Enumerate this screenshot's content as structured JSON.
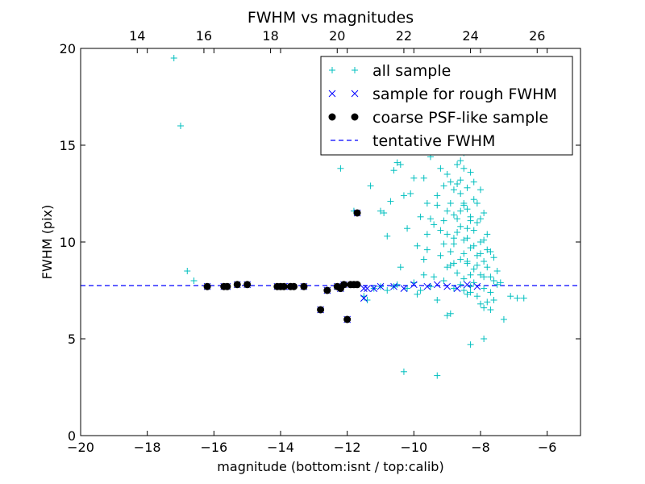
{
  "chart_data": {
    "type": "scatter",
    "title": "FWHM vs magnitudes",
    "xlabel": "magnitude (bottom:isnt / top:calib)",
    "ylabel": "FWHM (pix)",
    "xlim": [
      -20,
      -5
    ],
    "ylim": [
      0,
      20
    ],
    "x_ticks": [
      -20,
      -18,
      -16,
      -14,
      -12,
      -10,
      -8,
      -6
    ],
    "y_ticks": [
      0,
      5,
      10,
      15,
      20
    ],
    "x_tick_labels": [
      "−20",
      "−18",
      "−16",
      "−14",
      "−12",
      "−10",
      "−8",
      "−6"
    ],
    "y_tick_labels": [
      "0",
      "5",
      "10",
      "15",
      "20"
    ],
    "top_axis": {
      "offset": 32.3,
      "ticks": [
        14,
        16,
        18,
        20,
        22,
        24,
        26
      ],
      "tick_labels": [
        "14",
        "16",
        "18",
        "20",
        "22",
        "24",
        "26"
      ]
    },
    "grid": false,
    "legend_position": "top-right",
    "series": [
      {
        "name": "all sample",
        "marker": "plus",
        "color": "#00bfbf",
        "points": [
          [
            -17.2,
            19.5
          ],
          [
            -17.0,
            16.0
          ],
          [
            -16.8,
            8.5
          ],
          [
            -16.6,
            8.0
          ],
          [
            -12.2,
            13.8
          ],
          [
            -11.8,
            11.6
          ],
          [
            -11.5,
            7.2
          ],
          [
            -11.4,
            7.0
          ],
          [
            -11.3,
            12.9
          ],
          [
            -11.2,
            7.6
          ],
          [
            -11.0,
            11.6
          ],
          [
            -11.0,
            7.7
          ],
          [
            -10.9,
            11.5
          ],
          [
            -10.8,
            10.3
          ],
          [
            -10.8,
            7.5
          ],
          [
            -10.7,
            12.1
          ],
          [
            -10.6,
            13.7
          ],
          [
            -10.6,
            7.7
          ],
          [
            -10.5,
            7.8
          ],
          [
            -10.5,
            14.1
          ],
          [
            -10.4,
            14.0
          ],
          [
            -10.4,
            8.7
          ],
          [
            -10.3,
            12.4
          ],
          [
            -10.3,
            3.3
          ],
          [
            -10.2,
            10.7
          ],
          [
            -10.2,
            7.6
          ],
          [
            -10.1,
            12.5
          ],
          [
            -10.0,
            13.3
          ],
          [
            -10.0,
            7.9
          ],
          [
            -9.9,
            9.8
          ],
          [
            -9.9,
            7.3
          ],
          [
            -9.8,
            11.3
          ],
          [
            -9.8,
            7.5
          ],
          [
            -9.7,
            13.3
          ],
          [
            -9.7,
            8.3
          ],
          [
            -9.6,
            12.0
          ],
          [
            -9.6,
            9.6
          ],
          [
            -9.5,
            7.7
          ],
          [
            -9.5,
            14.4
          ],
          [
            -9.4,
            10.9
          ],
          [
            -9.4,
            8.2
          ],
          [
            -9.3,
            12.4
          ],
          [
            -9.3,
            7.0
          ],
          [
            -9.3,
            3.1
          ],
          [
            -9.2,
            9.3
          ],
          [
            -9.2,
            13.8
          ],
          [
            -9.1,
            11.1
          ],
          [
            -9.1,
            8.0
          ],
          [
            -9.0,
            6.2
          ],
          [
            -9.0,
            10.4
          ],
          [
            -9.0,
            13.5
          ],
          [
            -8.9,
            8.8
          ],
          [
            -8.9,
            12.0
          ],
          [
            -8.9,
            6.3
          ],
          [
            -8.8,
            9.9
          ],
          [
            -8.8,
            11.4
          ],
          [
            -8.8,
            7.6
          ],
          [
            -8.7,
            13.0
          ],
          [
            -8.7,
            8.4
          ],
          [
            -8.7,
            10.5
          ],
          [
            -8.6,
            9.1
          ],
          [
            -8.6,
            12.5
          ],
          [
            -8.6,
            7.8
          ],
          [
            -8.5,
            11.9
          ],
          [
            -8.5,
            8.1
          ],
          [
            -8.5,
            14.6
          ],
          [
            -8.4,
            10.2
          ],
          [
            -8.4,
            12.8
          ],
          [
            -8.4,
            8.9
          ],
          [
            -8.3,
            11.3
          ],
          [
            -8.3,
            9.7
          ],
          [
            -8.3,
            13.6
          ],
          [
            -8.3,
            7.4
          ],
          [
            -8.2,
            10.6
          ],
          [
            -8.2,
            8.6
          ],
          [
            -8.2,
            12.2
          ],
          [
            -8.1,
            9.3
          ],
          [
            -8.1,
            11.0
          ],
          [
            -8.1,
            7.2
          ],
          [
            -8.0,
            10.0
          ],
          [
            -8.0,
            8.3
          ],
          [
            -8.0,
            12.7
          ],
          [
            -7.9,
            9.0
          ],
          [
            -7.9,
            7.6
          ],
          [
            -7.9,
            11.5
          ],
          [
            -7.8,
            8.7
          ],
          [
            -7.8,
            10.4
          ],
          [
            -7.8,
            6.9
          ],
          [
            -7.7,
            9.5
          ],
          [
            -7.7,
            8.2
          ],
          [
            -7.7,
            6.5
          ],
          [
            -7.6,
            8.0
          ],
          [
            -7.6,
            9.2
          ],
          [
            -7.5,
            7.8
          ],
          [
            -7.5,
            8.5
          ],
          [
            -7.4,
            7.9
          ],
          [
            -8.6,
            13.2
          ],
          [
            -8.5,
            13.8
          ],
          [
            -8.4,
            11.7
          ],
          [
            -8.5,
            10.1
          ],
          [
            -8.4,
            9.0
          ],
          [
            -8.3,
            8.3
          ],
          [
            -8.2,
            9.8
          ],
          [
            -8.6,
            10.8
          ],
          [
            -8.7,
            11.2
          ],
          [
            -8.8,
            8.9
          ],
          [
            -8.9,
            9.5
          ],
          [
            -9.0,
            8.7
          ],
          [
            -9.1,
            9.9
          ],
          [
            -9.2,
            10.6
          ],
          [
            -8.5,
            7.5
          ],
          [
            -8.4,
            7.3
          ],
          [
            -8.3,
            7.7
          ],
          [
            -8.2,
            7.9
          ],
          [
            -8.1,
            8.8
          ],
          [
            -8.0,
            9.4
          ],
          [
            -7.9,
            10.1
          ],
          [
            -7.8,
            9.6
          ],
          [
            -7.7,
            7.4
          ],
          [
            -7.6,
            7.0
          ],
          [
            -8.0,
            6.8
          ],
          [
            -7.9,
            6.6
          ],
          [
            -8.3,
            4.7
          ],
          [
            -7.9,
            5.0
          ],
          [
            -7.3,
            6.0
          ],
          [
            -7.1,
            7.2
          ],
          [
            -6.9,
            7.1
          ],
          [
            -6.7,
            7.1
          ],
          [
            -8.5,
            12.0
          ],
          [
            -8.6,
            11.6
          ],
          [
            -9.3,
            11.9
          ],
          [
            -9.5,
            11.2
          ],
          [
            -9.6,
            10.4
          ],
          [
            -9.7,
            9.1
          ],
          [
            -8.8,
            12.7
          ],
          [
            -8.9,
            13.1
          ],
          [
            -9.1,
            12.9
          ],
          [
            -8.7,
            14.0
          ],
          [
            -8.6,
            14.2
          ],
          [
            -8.8,
            10.2
          ],
          [
            -9.0,
            11.6
          ],
          [
            -8.5,
            9.4
          ],
          [
            -8.4,
            10.7
          ],
          [
            -8.3,
            11.1
          ],
          [
            -8.2,
            13.1
          ],
          [
            -8.1,
            12.0
          ],
          [
            -8.0,
            11.2
          ],
          [
            -7.9,
            8.2
          ]
        ]
      },
      {
        "name": "sample for rough FWHM",
        "marker": "x",
        "color": "#0000ff",
        "points": [
          [
            -16.2,
            7.7
          ],
          [
            -15.7,
            7.7
          ],
          [
            -15.6,
            7.7
          ],
          [
            -15.3,
            7.8
          ],
          [
            -15.0,
            7.8
          ],
          [
            -14.1,
            7.7
          ],
          [
            -13.9,
            7.7
          ],
          [
            -13.7,
            7.7
          ],
          [
            -13.3,
            7.7
          ],
          [
            -12.8,
            6.5
          ],
          [
            -12.6,
            7.5
          ],
          [
            -12.3,
            7.7
          ],
          [
            -12.2,
            7.6
          ],
          [
            -12.1,
            7.8
          ],
          [
            -12.0,
            6.0
          ],
          [
            -11.8,
            7.8
          ],
          [
            -11.7,
            11.5
          ],
          [
            -11.5,
            7.6
          ],
          [
            -11.5,
            7.1
          ],
          [
            -11.4,
            7.6
          ],
          [
            -11.2,
            7.6
          ],
          [
            -11.0,
            7.7
          ],
          [
            -10.6,
            7.7
          ],
          [
            -10.3,
            7.6
          ],
          [
            -10.0,
            7.8
          ],
          [
            -9.6,
            7.7
          ],
          [
            -9.3,
            7.8
          ],
          [
            -9.0,
            7.7
          ],
          [
            -8.7,
            7.6
          ],
          [
            -8.4,
            7.8
          ],
          [
            -8.1,
            7.7
          ]
        ]
      },
      {
        "name": "coarse PSF-like sample",
        "marker": "circle",
        "color": "#000000",
        "points": [
          [
            -16.2,
            7.7
          ],
          [
            -15.7,
            7.7
          ],
          [
            -15.6,
            7.7
          ],
          [
            -15.3,
            7.8
          ],
          [
            -15.0,
            7.8
          ],
          [
            -14.1,
            7.7
          ],
          [
            -14.0,
            7.7
          ],
          [
            -13.9,
            7.7
          ],
          [
            -13.7,
            7.7
          ],
          [
            -13.6,
            7.7
          ],
          [
            -13.3,
            7.7
          ],
          [
            -12.8,
            6.5
          ],
          [
            -12.6,
            7.5
          ],
          [
            -12.3,
            7.7
          ],
          [
            -12.2,
            7.6
          ],
          [
            -12.1,
            7.8
          ],
          [
            -12.0,
            6.0
          ],
          [
            -11.9,
            7.8
          ],
          [
            -11.8,
            7.8
          ],
          [
            -11.7,
            7.8
          ],
          [
            -11.7,
            11.5
          ]
        ]
      }
    ],
    "reference_lines": [
      {
        "name": "tentative FWHM",
        "type": "horizontal",
        "y": 7.75,
        "style": "dashed",
        "color": "#0000ff"
      }
    ]
  }
}
